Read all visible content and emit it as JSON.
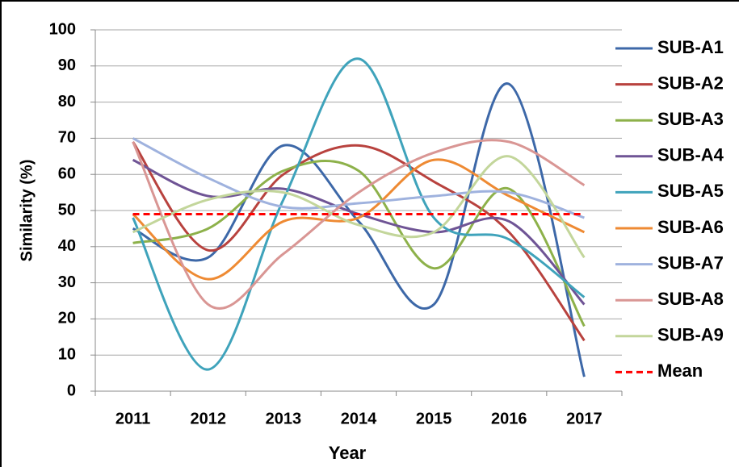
{
  "chart_data": {
    "type": "line",
    "x_label": "Year",
    "y_label": "Similarity (%)",
    "categories": [
      "2011",
      "2012",
      "2013",
      "2014",
      "2015",
      "2016",
      "2017"
    ],
    "ylim": [
      0,
      100
    ],
    "yticks": [
      0,
      10,
      20,
      30,
      40,
      50,
      60,
      70,
      80,
      90,
      100
    ],
    "grid": true,
    "series": [
      {
        "name": "SUB-A1",
        "color": "#3d68a8",
        "values": [
          45,
          37,
          68,
          47,
          24,
          85,
          4
        ]
      },
      {
        "name": "SUB-A2",
        "color": "#b8423e",
        "values": [
          69,
          39,
          60,
          68,
          58,
          44,
          14
        ]
      },
      {
        "name": "SUB-A3",
        "color": "#8db14a",
        "values": [
          41,
          45,
          61,
          61,
          34,
          56,
          18
        ]
      },
      {
        "name": "SUB-A4",
        "color": "#6f5495",
        "values": [
          64,
          54,
          56,
          49,
          44,
          47,
          24
        ]
      },
      {
        "name": "SUB-A5",
        "color": "#3fa3bb",
        "values": [
          48,
          6,
          53,
          92,
          48,
          42,
          26
        ]
      },
      {
        "name": "SUB-A6",
        "color": "#ee8a33",
        "values": [
          49,
          31,
          47,
          48,
          64,
          54,
          44
        ]
      },
      {
        "name": "SUB-A7",
        "color": "#9fb2de",
        "values": [
          70,
          59,
          51,
          52,
          54,
          55,
          48
        ]
      },
      {
        "name": "SUB-A8",
        "color": "#d99694",
        "values": [
          69,
          24,
          38,
          55,
          66,
          69,
          57
        ]
      },
      {
        "name": "SUB-A9",
        "color": "#c3d69b",
        "values": [
          44,
          53,
          55,
          46,
          44,
          65,
          37
        ]
      },
      {
        "name": "Mean",
        "color": "#ff0000",
        "dashed": true,
        "values": [
          49,
          49,
          49,
          49,
          49,
          49,
          49
        ]
      }
    ]
  }
}
